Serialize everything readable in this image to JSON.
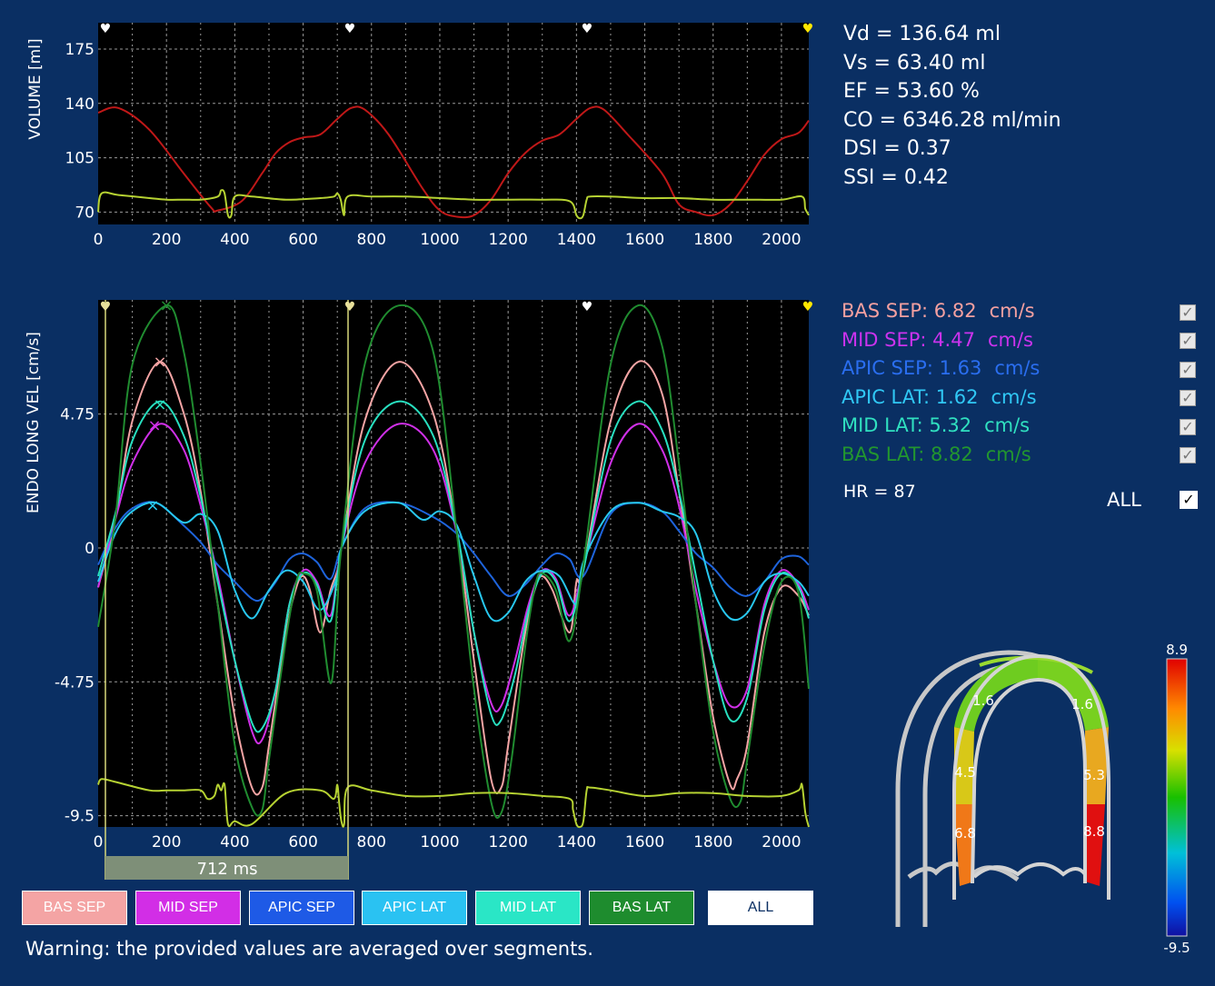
{
  "volume_chart": {
    "ylabel": "VOLUME [ml]",
    "yticks": [
      "175",
      "140",
      "105",
      "70"
    ],
    "xticks": [
      "0",
      "200",
      "400",
      "600",
      "800",
      "1000",
      "1200",
      "1400",
      "1600",
      "1800",
      "2000"
    ]
  },
  "velocity_chart": {
    "ylabel": "ENDO LONG VEL [cm/s]",
    "yticks": [
      "4.75",
      "0",
      "-4.75",
      "-9.5"
    ],
    "xticks": [
      "0",
      "200",
      "400",
      "600",
      "800",
      "1000",
      "1200",
      "1400",
      "1600",
      "1800",
      "2000"
    ],
    "cycle_label": "712 ms"
  },
  "chart_data": [
    {
      "type": "line",
      "ylabel": "VOLUME [ml]",
      "ylim": [
        62,
        192
      ],
      "xlim": [
        0,
        2080
      ],
      "series": [
        {
          "color": "#c01818",
          "x": [
            0,
            60,
            150,
            250,
            330,
            350,
            420,
            480,
            520,
            560,
            600,
            650,
            700,
            740,
            780,
            850,
            950,
            1000,
            1050,
            1100,
            1150,
            1200,
            1250,
            1300,
            1350,
            1400,
            1440,
            1480,
            1550,
            1650,
            1700,
            1750,
            1800,
            1850,
            1900,
            1950,
            2000,
            2050,
            2080
          ],
          "values": [
            134,
            137,
            123,
            95,
            73,
            71,
            77,
            95,
            108,
            115,
            118,
            120,
            130,
            137,
            136,
            120,
            85,
            71,
            67,
            68,
            78,
            95,
            108,
            116,
            120,
            130,
            137,
            136,
            120,
            95,
            75,
            70,
            68,
            75,
            90,
            107,
            117,
            121,
            129
          ]
        },
        {
          "color": "#b6d232",
          "x": [
            0,
            10,
            60,
            150,
            200,
            250,
            300,
            350,
            360,
            370,
            380,
            390,
            400,
            450,
            550,
            650,
            690,
            700,
            710,
            720,
            730,
            800,
            900,
            1000,
            1100,
            1200,
            1300,
            1380,
            1400,
            1410,
            1420,
            1430,
            1440,
            1500,
            1600,
            1700,
            1800,
            1900,
            2000,
            2060,
            2070,
            2080
          ],
          "values": [
            70,
            82,
            81,
            79,
            78,
            78,
            78,
            80,
            84,
            82,
            68,
            68,
            80,
            80,
            78,
            79,
            80,
            82,
            78,
            68,
            80,
            80,
            80,
            79,
            78,
            78,
            78,
            77,
            68,
            66,
            68,
            78,
            80,
            80,
            79,
            79,
            78,
            78,
            78,
            80,
            72,
            68
          ]
        }
      ]
    },
    {
      "type": "line",
      "ylabel": "ENDO LONG VEL [cm/s]",
      "ylim": [
        -9.9,
        8.8
      ],
      "xlim": [
        0,
        2080
      ],
      "series": [
        {
          "name": "BAS SEP",
          "peak": "6.82",
          "unit": "cm/s",
          "color": "#f4a4a4",
          "x": [
            0,
            50,
            100,
            180,
            250,
            300,
            350,
            400,
            450,
            480,
            500,
            550,
            580,
            600,
            620,
            650,
            680,
            700,
            712,
            780,
            880,
            980,
            1050,
            1100,
            1150,
            1180,
            1200,
            1250,
            1280,
            1300,
            1330,
            1380,
            1400,
            1420,
            1500,
            1580,
            1650,
            1700,
            1750,
            1800,
            1850,
            1870,
            1900,
            1950,
            2000,
            2050,
            2080
          ],
          "values": [
            -1.4,
            1,
            4.5,
            6.6,
            4.8,
            2,
            -2,
            -6,
            -8.5,
            -8.5,
            -7,
            -3,
            -1.4,
            -1,
            -1.5,
            -3,
            -1.5,
            -0.8,
            0,
            4.5,
            6.6,
            4.8,
            0.5,
            -4,
            -8.2,
            -8.5,
            -7,
            -3,
            -1.4,
            -1,
            -1.5,
            -3,
            -1.2,
            -0.8,
            4.5,
            6.6,
            5.5,
            2,
            -2,
            -6,
            -8.4,
            -8.2,
            -7,
            -3,
            -1.4,
            -1.7,
            -2.4
          ]
        },
        {
          "name": "MID SEP",
          "peak": "4.47",
          "unit": "cm/s",
          "color": "#d030e8",
          "x": [
            0,
            50,
            100,
            180,
            250,
            300,
            350,
            400,
            450,
            480,
            520,
            560,
            600,
            640,
            680,
            712,
            780,
            880,
            980,
            1050,
            1100,
            1150,
            1180,
            1220,
            1260,
            1300,
            1340,
            1380,
            1420,
            1500,
            1580,
            1650,
            1700,
            1750,
            1800,
            1850,
            1900,
            1950,
            2000,
            2050,
            2080
          ],
          "values": [
            -1.4,
            1,
            3,
            4.4,
            3.5,
            1.5,
            -1,
            -4,
            -6.5,
            -6.8,
            -5,
            -2,
            -0.8,
            -1.2,
            -2.4,
            0,
            3,
            4.4,
            3.5,
            0.5,
            -3,
            -5.5,
            -5.6,
            -4,
            -2,
            -0.8,
            -1.1,
            -2.4,
            -0.7,
            3,
            4.4,
            3.5,
            1.5,
            -1.5,
            -4,
            -5.6,
            -5,
            -2,
            -0.8,
            -1.3,
            -2.2
          ]
        },
        {
          "name": "APIC SEP",
          "peak": "1.63",
          "unit": "cm/s",
          "color": "#1e64dc",
          "x": [
            0,
            50,
            100,
            170,
            250,
            300,
            350,
            400,
            450,
            480,
            520,
            560,
            600,
            640,
            680,
            712,
            780,
            880,
            980,
            1050,
            1100,
            1150,
            1200,
            1250,
            1300,
            1340,
            1380,
            1420,
            1500,
            1580,
            1650,
            1700,
            1750,
            1800,
            1850,
            1900,
            1950,
            2000,
            2050,
            2080
          ],
          "values": [
            -0.6,
            0.7,
            1.4,
            1.6,
            0.8,
            0.2,
            -0.6,
            -1.2,
            -1.8,
            -1.8,
            -1.2,
            -0.4,
            -0.2,
            -0.5,
            -1.1,
            0,
            1.4,
            1.6,
            1.1,
            0.5,
            -0.2,
            -1.0,
            -1.7,
            -1.3,
            -0.6,
            -0.2,
            -0.4,
            -1.0,
            1.2,
            1.6,
            1.3,
            0.6,
            -0.2,
            -0.7,
            -1.4,
            -1.7,
            -1.2,
            -0.4,
            -0.3,
            -0.6
          ]
        },
        {
          "name": "APIC LAT",
          "peak": "1.62",
          "unit": "cm/s",
          "color": "#28c8f0",
          "x": [
            0,
            50,
            100,
            170,
            250,
            300,
            350,
            400,
            450,
            500,
            550,
            600,
            650,
            700,
            712,
            780,
            880,
            950,
            1000,
            1050,
            1100,
            1150,
            1200,
            1250,
            1300,
            1350,
            1400,
            1420,
            1500,
            1580,
            1650,
            1700,
            1750,
            1800,
            1850,
            1900,
            1950,
            2000,
            2050,
            2080
          ],
          "values": [
            -1.2,
            0.5,
            1.3,
            1.6,
            0.9,
            1.2,
            0.6,
            -1.5,
            -2.5,
            -1.5,
            -0.8,
            -1.2,
            -2.2,
            -1.0,
            0,
            1.3,
            1.6,
            1.0,
            1.3,
            0.8,
            -1.0,
            -2.5,
            -2.3,
            -1.2,
            -0.8,
            -1.0,
            -2.0,
            -0.5,
            1.3,
            1.6,
            1.3,
            1.1,
            0.5,
            -1.5,
            -2.5,
            -2.3,
            -1.2,
            -0.9,
            -1.2,
            -1.7
          ]
        },
        {
          "name": "MID LAT",
          "peak": "5.32",
          "unit": "cm/s",
          "color": "#28e0c0",
          "x": [
            0,
            50,
            100,
            180,
            250,
            300,
            350,
            400,
            450,
            480,
            520,
            560,
            600,
            640,
            680,
            712,
            780,
            880,
            980,
            1050,
            1100,
            1150,
            1180,
            1220,
            1260,
            1300,
            1340,
            1380,
            1420,
            1500,
            1580,
            1650,
            1700,
            1750,
            1800,
            1850,
            1900,
            1950,
            2000,
            2050,
            2080
          ],
          "values": [
            -1.0,
            1.2,
            3.8,
            5.2,
            4.0,
            1.8,
            -1.2,
            -4,
            -6.2,
            -6.4,
            -5,
            -2,
            -0.9,
            -1.3,
            -2.6,
            0,
            3.8,
            5.2,
            4.0,
            0.6,
            -3,
            -5.9,
            -6.1,
            -4.5,
            -2.2,
            -0.9,
            -1.2,
            -2.6,
            -0.8,
            3.8,
            5.2,
            4.2,
            2,
            -1,
            -4,
            -6.1,
            -5.3,
            -2.2,
            -0.9,
            -1.4,
            -2.5
          ]
        },
        {
          "name": "BAS LAT",
          "peak": "8.82",
          "unit": "cm/s",
          "color": "#208c30",
          "x": [
            0,
            50,
            100,
            200,
            250,
            300,
            350,
            400,
            450,
            480,
            500,
            550,
            580,
            600,
            640,
            680,
            700,
            712,
            780,
            880,
            980,
            1050,
            1100,
            1150,
            1180,
            1210,
            1250,
            1280,
            1300,
            1340,
            1380,
            1420,
            1500,
            1580,
            1650,
            1700,
            1750,
            1800,
            1850,
            1880,
            1900,
            1950,
            2000,
            2050,
            2080
          ],
          "values": [
            -2.8,
            1,
            6.5,
            8.6,
            7,
            3,
            -2,
            -7,
            -9.2,
            -9.3,
            -7.5,
            -3.2,
            -1.2,
            -0.9,
            -1.5,
            -4.8,
            -2,
            0,
            6.5,
            8.6,
            7,
            0.5,
            -5,
            -9.0,
            -9.4,
            -7.5,
            -3.5,
            -1.3,
            -0.9,
            -1.5,
            -3.3,
            -0.6,
            6.5,
            8.6,
            7.2,
            3,
            -2,
            -6.5,
            -8.9,
            -9.0,
            -7.5,
            -3.5,
            -1.2,
            -1.6,
            -5
          ]
        },
        {
          "color": "#b6d232",
          "x": [
            0,
            10,
            50,
            150,
            200,
            250,
            300,
            320,
            340,
            350,
            360,
            370,
            380,
            400,
            450,
            550,
            650,
            690,
            700,
            705,
            712,
            720,
            730,
            800,
            900,
            1000,
            1100,
            1200,
            1300,
            1380,
            1390,
            1400,
            1410,
            1420,
            1430,
            1440,
            1500,
            1600,
            1700,
            1800,
            1900,
            2000,
            2050,
            2060,
            2070,
            2080
          ],
          "values": [
            -8.4,
            -8.2,
            -8.3,
            -8.6,
            -8.6,
            -8.6,
            -8.6,
            -8.9,
            -8.8,
            -8.4,
            -8.6,
            -8.4,
            -9.8,
            -9.7,
            -9.8,
            -8.7,
            -8.6,
            -8.9,
            -8.4,
            -9.0,
            -9.7,
            -9.8,
            -8.5,
            -8.6,
            -8.8,
            -8.8,
            -8.7,
            -8.7,
            -8.8,
            -8.9,
            -9.3,
            -9.8,
            -9.9,
            -9.7,
            -8.6,
            -8.5,
            -8.6,
            -8.8,
            -8.7,
            -8.7,
            -8.8,
            -8.8,
            -8.6,
            -8.4,
            -9.4,
            -9.9
          ]
        }
      ]
    }
  ],
  "stats": [
    "Vd = 136.64 ml",
    "Vs = 63.40 ml",
    "EF = 53.60 %",
    "CO = 6346.28 ml/min",
    "DSI = 0.37",
    "SSI = 0.42"
  ],
  "legend": [
    {
      "label": "BAS SEP: 6.82",
      "unit": "cm/s",
      "color": "#f4a0a0"
    },
    {
      "label": "MID SEP: 4.47",
      "unit": "cm/s",
      "color": "#cc33ee"
    },
    {
      "label": "APIC SEP: 1.63",
      "unit": "cm/s",
      "color": "#2a6ef0"
    },
    {
      "label": "APIC LAT: 1.62",
      "unit": "cm/s",
      "color": "#30c8f5"
    },
    {
      "label": "MID LAT: 5.32",
      "unit": "cm/s",
      "color": "#30e0c0"
    },
    {
      "label": "BAS LAT: 8.82",
      "unit": "cm/s",
      "color": "#22962f"
    }
  ],
  "hr": "HR = 87",
  "all_label": "ALL",
  "buttons": [
    {
      "label": "BAS SEP",
      "bg": "#f4a4a4",
      "fg": "#ffffff"
    },
    {
      "label": "MID SEP",
      "bg": "#d22ee6",
      "fg": "#ffffff"
    },
    {
      "label": "APIC SEP",
      "bg": "#1e5ae6",
      "fg": "#ffffff"
    },
    {
      "label": "APIC LAT",
      "bg": "#2ac2f2",
      "fg": "#ffffff"
    },
    {
      "label": "MID LAT",
      "bg": "#2ae6c6",
      "fg": "#ffffff"
    },
    {
      "label": "BAS LAT",
      "bg": "#1e8c2e",
      "fg": "#ffffff"
    },
    {
      "label": "ALL",
      "bg": "#ffffff",
      "fg": "#0a2f63"
    }
  ],
  "warning": "Warning: the provided values are averaged over segments.",
  "bullseye": {
    "segments": [
      "1.6",
      "1.6",
      "4.5",
      "5.3",
      "6.8",
      "8.8"
    ],
    "scale_max": "8.9",
    "scale_min": "-9.5"
  }
}
